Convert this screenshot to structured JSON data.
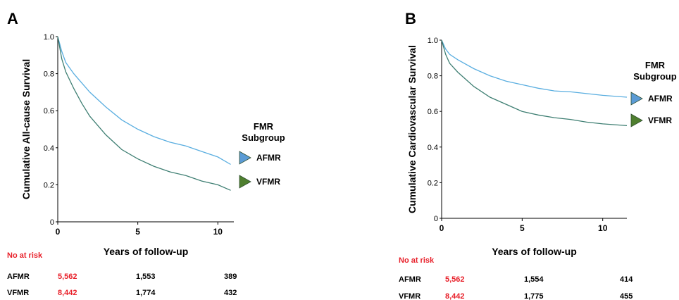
{
  "panels": {
    "A": {
      "letter": "A"
    },
    "B": {
      "letter": "B"
    }
  },
  "chart_data": [
    {
      "type": "line",
      "panel": "A",
      "title": "",
      "xlabel": "Years of follow-up",
      "ylabel": "Cumulative All-cause Survival",
      "xlim": [
        0,
        11
      ],
      "ylim": [
        0,
        1.0
      ],
      "xticks": [
        0,
        5,
        10
      ],
      "yticks": [
        0,
        0.2,
        0.4,
        0.6,
        0.8,
        1.0
      ],
      "ytick_labels": [
        "0",
        "0.2",
        "0.4",
        "0.6",
        "0.8",
        "1.0"
      ],
      "grid": false,
      "legend": {
        "title": "FMR Subgroup",
        "title_lines": [
          "FMR",
          "Subgroup"
        ],
        "placement": "right"
      },
      "series": [
        {
          "name": "AFMR",
          "color": "#5aaee0",
          "marker_color": "#5b9bd5",
          "x": [
            0,
            0.25,
            0.5,
            1,
            1.5,
            2,
            3,
            4,
            5,
            6,
            7,
            8,
            9,
            10,
            10.8
          ],
          "y": [
            1.0,
            0.92,
            0.86,
            0.8,
            0.75,
            0.7,
            0.62,
            0.55,
            0.5,
            0.46,
            0.43,
            0.41,
            0.38,
            0.35,
            0.31
          ]
        },
        {
          "name": "VFMR",
          "color": "#3f7f73",
          "marker_color": "#4f7f2f",
          "x": [
            0,
            0.25,
            0.5,
            1,
            1.5,
            2,
            3,
            4,
            5,
            6,
            7,
            8,
            9,
            10,
            10.8
          ],
          "y": [
            1.0,
            0.88,
            0.81,
            0.72,
            0.64,
            0.57,
            0.47,
            0.39,
            0.34,
            0.3,
            0.27,
            0.25,
            0.22,
            0.2,
            0.17
          ]
        }
      ],
      "at_risk": {
        "title": "No at risk",
        "rows": [
          {
            "group": "AFMR",
            "values": [
              "5,562",
              "1,553",
              "389"
            ]
          },
          {
            "group": "VFMR",
            "values": [
              "8,442",
              "1,774",
              "432"
            ]
          }
        ]
      }
    },
    {
      "type": "line",
      "panel": "B",
      "title": "",
      "xlabel": "Years of follow-up",
      "ylabel": "Cumulative Cardiovascular Survival",
      "xlim": [
        0,
        11.5
      ],
      "ylim": [
        0,
        1.0
      ],
      "xticks": [
        0,
        5,
        10
      ],
      "yticks": [
        0,
        0.2,
        0.4,
        0.6,
        0.8,
        1.0
      ],
      "ytick_labels": [
        "0",
        "0.2",
        "0.4",
        "0.6",
        "0.8",
        "1.0"
      ],
      "grid": false,
      "legend": {
        "title": "FMR Subgroup",
        "title_lines": [
          "FMR",
          "Subgroup"
        ],
        "placement": "right"
      },
      "series": [
        {
          "name": "AFMR",
          "color": "#5aaee0",
          "marker_color": "#5b9bd5",
          "x": [
            0,
            0.25,
            0.5,
            1,
            2,
            3,
            4,
            5,
            6,
            7,
            8,
            9,
            10,
            11.5
          ],
          "y": [
            1.0,
            0.95,
            0.92,
            0.89,
            0.84,
            0.8,
            0.77,
            0.75,
            0.73,
            0.715,
            0.71,
            0.7,
            0.69,
            0.68
          ]
        },
        {
          "name": "VFMR",
          "color": "#3f7f73",
          "marker_color": "#4f7f2f",
          "x": [
            0,
            0.25,
            0.5,
            1,
            2,
            3,
            4,
            5,
            6,
            7,
            8,
            9,
            10,
            11.5
          ],
          "y": [
            1.0,
            0.92,
            0.87,
            0.82,
            0.74,
            0.68,
            0.64,
            0.6,
            0.58,
            0.565,
            0.555,
            0.54,
            0.53,
            0.52
          ]
        }
      ],
      "at_risk": {
        "title": "No at risk",
        "rows": [
          {
            "group": "AFMR",
            "values": [
              "5,562",
              "1,554",
              "414"
            ]
          },
          {
            "group": "VFMR",
            "values": [
              "8,442",
              "1,775",
              "455"
            ]
          }
        ]
      }
    }
  ]
}
